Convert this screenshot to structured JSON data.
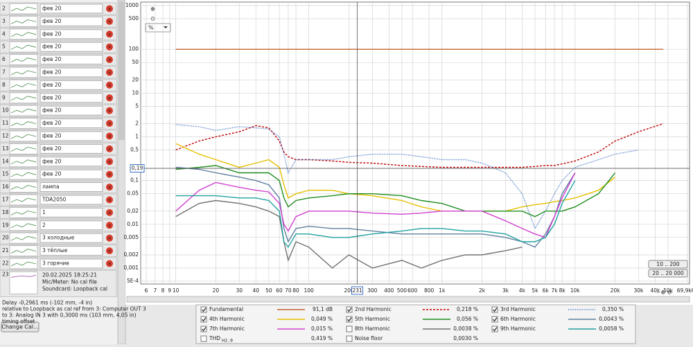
{
  "measurements": [
    {
      "number": 2,
      "name": "фев 20"
    },
    {
      "number": 3,
      "name": "фев 20"
    },
    {
      "number": 4,
      "name": "фев 20"
    },
    {
      "number": 5,
      "name": "фев 20"
    },
    {
      "number": 6,
      "name": "фев 20"
    },
    {
      "number": 7,
      "name": "фев 20"
    },
    {
      "number": 8,
      "name": "фев 20"
    },
    {
      "number": 9,
      "name": "фев 20"
    },
    {
      "number": 10,
      "name": "фев 20"
    },
    {
      "number": 11,
      "name": "фев 20"
    },
    {
      "number": 12,
      "name": "фев 20"
    },
    {
      "number": 13,
      "name": "фев 20"
    },
    {
      "number": 14,
      "name": "фев 20"
    },
    {
      "number": 15,
      "name": "фев 20"
    },
    {
      "number": 16,
      "name": "лампа"
    },
    {
      "number": 17,
      "name": "TDA2050"
    },
    {
      "number": 18,
      "name": "1"
    },
    {
      "number": 19,
      "name": "2"
    },
    {
      "number": 20,
      "name": "3 холодные"
    },
    {
      "number": 21,
      "name": "3 тёплые"
    },
    {
      "number": 22,
      "name": "3 горячие"
    }
  ],
  "selected": {
    "number": 23,
    "date": "20.02.2025 18:25:21",
    "mic": "Mic/Meter: No cal file",
    "soundcard": "Soundcard: Loopback cal"
  },
  "delay_note": [
    "Delay -0,2961 ms (-102 mm, -4 in)",
    "relative to Loopback as cal ref from 3: Computer OUT 3",
    "to 3: Analog IN 3 with 0,3000 ms (103 mm, 4,05 in)",
    "timing offset"
  ],
  "change_cal_button": "Change Cal...",
  "controls": {
    "zoom_in": "⊕",
    "zoom_out": "⊖",
    "unit": "%",
    "range_buttons": [
      "10 .. 200",
      "20 .. 20 000"
    ]
  },
  "chart_data": {
    "type": "line",
    "xscale": "log",
    "yscale": "log",
    "grid": true,
    "xlim": [
      6,
      69900
    ],
    "ylim": [
      0.0005,
      1000
    ],
    "xticks": [
      6,
      7,
      8,
      9,
      10,
      20,
      30,
      40,
      50,
      60,
      70,
      80,
      100,
      200,
      300,
      400,
      500,
      600,
      800,
      {
        "value": 1000,
        "label": "1k"
      },
      {
        "value": 2000,
        "label": "2k"
      },
      {
        "value": 3000,
        "label": "3k"
      },
      {
        "value": 4000,
        "label": "4k"
      },
      {
        "value": 5000,
        "label": "5k"
      },
      {
        "value": 6000,
        "label": "6k"
      },
      {
        "value": 7000,
        "label": "7k"
      },
      {
        "value": 8000,
        "label": "8k"
      },
      {
        "value": 10000,
        "label": "10k"
      },
      {
        "value": 20000,
        "label": "20k"
      },
      {
        "value": 30000,
        "label": "30k"
      },
      {
        "value": 40000,
        "label": "40k"
      },
      {
        "value": 50000,
        "label": "50k"
      },
      {
        "value": 69900,
        "label": "69,9kHz"
      }
    ],
    "yticks": [
      1000,
      500,
      100,
      50,
      20,
      10,
      5,
      2,
      1,
      {
        "value": 0.5,
        "label": "0,5"
      },
      {
        "value": 0.1,
        "label": "0,1"
      },
      {
        "value": 0.05,
        "label": "0,05"
      },
      {
        "value": 0.02,
        "label": "0,02"
      },
      {
        "value": 0.01,
        "label": "0,01"
      },
      {
        "value": 0.005,
        "label": "0,005"
      },
      {
        "value": 0.002,
        "label": "0,002"
      },
      {
        "value": 0.001,
        "label": "0,001"
      },
      {
        "value": 0.0005,
        "label": "5E-4"
      }
    ],
    "cursor": {
      "x": {
        "value": 231,
        "label": "231"
      },
      "y": {
        "value": 0.19,
        "label": "0,19"
      }
    },
    "x": [
      10,
      15,
      20,
      30,
      40,
      50,
      60,
      65,
      70,
      80,
      100,
      150,
      200,
      300,
      500,
      700,
      1000,
      1500,
      2000,
      3000,
      4000,
      5000,
      6000,
      7000,
      8000,
      10000,
      15000,
      20000,
      30000,
      46000
    ],
    "series": [
      {
        "name": "Fundamental",
        "color": "#c0622a",
        "dash": "solid",
        "checked": true,
        "reading": "91,1 dB",
        "values": [
          100,
          100,
          100,
          100,
          100,
          100,
          100,
          100,
          100,
          100,
          100,
          100,
          100,
          100,
          100,
          100,
          100,
          100,
          100,
          100,
          100,
          100,
          100,
          100,
          100,
          100,
          100,
          100,
          100,
          100
        ]
      },
      {
        "name": "2nd Harmonic",
        "color": "#c00000",
        "dash": "dashed",
        "checked": true,
        "reading": "0,218 %",
        "values": [
          0.5,
          0.8,
          1.0,
          1.3,
          1.8,
          1.6,
          0.8,
          0.45,
          0.35,
          0.3,
          0.3,
          0.28,
          0.26,
          0.25,
          0.22,
          0.21,
          0.2,
          0.2,
          0.2,
          0.2,
          0.2,
          0.21,
          0.22,
          0.22,
          0.24,
          0.28,
          0.45,
          0.8,
          1.3,
          2
        ]
      },
      {
        "name": "3rd Harmonic",
        "color": "#3b6fc4",
        "dash": "dotted",
        "checked": true,
        "reading": "0,350 %",
        "values": [
          1.9,
          1.7,
          1.4,
          1.7,
          1.6,
          1.5,
          1.0,
          0.4,
          0.15,
          0.3,
          0.3,
          0.3,
          0.35,
          0.4,
          0.4,
          0.35,
          0.3,
          0.3,
          0.25,
          0.15,
          0.05,
          0.008,
          0.02,
          0.05,
          0.1,
          0.2,
          0.3,
          0.4,
          0.5,
          null
        ]
      },
      {
        "name": "4th Harmonic",
        "color": "#e6c000",
        "dash": "solid",
        "checked": true,
        "reading": "0,049 %",
        "values": [
          0.7,
          0.4,
          0.3,
          0.2,
          0.25,
          0.3,
          0.2,
          0.08,
          0.04,
          0.05,
          0.06,
          0.06,
          0.05,
          0.045,
          0.035,
          0.025,
          0.02,
          0.02,
          0.02,
          0.02,
          0.025,
          0.028,
          0.03,
          0.033,
          0.035,
          0.04,
          0.06,
          0.12,
          null,
          null
        ]
      },
      {
        "name": "5th Harmonic",
        "color": "#1e8c1e",
        "dash": "solid",
        "checked": true,
        "reading": "0,056 %",
        "values": [
          0.18,
          0.2,
          0.22,
          0.15,
          0.15,
          0.15,
          0.1,
          0.04,
          0.025,
          0.035,
          0.04,
          0.045,
          0.05,
          0.05,
          0.045,
          0.035,
          0.03,
          0.02,
          0.02,
          0.02,
          0.02,
          0.015,
          0.02,
          0.02,
          0.02,
          0.025,
          0.05,
          0.15,
          null,
          null
        ]
      },
      {
        "name": "6th Harmonic",
        "color": "#5f7f9f",
        "dash": "solid",
        "checked": true,
        "reading": "0,0043 %",
        "values": [
          0.2,
          0.18,
          0.15,
          0.12,
          0.1,
          0.08,
          0.04,
          0.008,
          0.004,
          0.008,
          0.009,
          0.008,
          0.008,
          0.007,
          0.006,
          0.006,
          0.006,
          0.006,
          0.006,
          0.005,
          0.004,
          0.003,
          0.006,
          0.015,
          0.05,
          0.15,
          null,
          null,
          null,
          null
        ]
      },
      {
        "name": "7th Harmonic",
        "color": "#d040d0",
        "dash": "solid",
        "checked": true,
        "reading": "0,015 %",
        "values": [
          0.02,
          0.06,
          0.09,
          0.07,
          0.06,
          0.055,
          0.03,
          0.01,
          0.007,
          0.015,
          0.02,
          0.02,
          0.02,
          0.018,
          0.017,
          0.018,
          0.02,
          0.02,
          0.02,
          0.012,
          0.008,
          0.006,
          0.005,
          0.015,
          0.04,
          0.15,
          null,
          null,
          null,
          null
        ]
      },
      {
        "name": "8th Harmonic",
        "color": "#707070",
        "dash": "solid",
        "checked": false,
        "reading": "0,0038 %",
        "values": [
          0.015,
          0.03,
          0.035,
          0.03,
          0.025,
          0.02,
          0.015,
          0.004,
          0.0015,
          0.004,
          0.003,
          0.001,
          0.002,
          0.001,
          0.0015,
          0.001,
          0.0015,
          0.002,
          0.002,
          0.0025,
          0.003,
          null,
          null,
          null,
          null,
          null,
          null,
          null,
          null,
          null
        ]
      },
      {
        "name": "9th Harmonic",
        "color": "#20a0a0",
        "dash": "solid",
        "checked": true,
        "reading": "0,0058 %",
        "values": [
          0.045,
          0.045,
          0.045,
          0.04,
          0.04,
          0.035,
          0.02,
          0.004,
          0.003,
          0.006,
          0.006,
          0.005,
          0.005,
          0.006,
          0.007,
          0.008,
          0.008,
          0.007,
          0.007,
          0.006,
          0.004,
          0.004,
          0.005,
          0.01,
          0.03,
          0.1,
          null,
          null,
          null,
          null
        ]
      }
    ],
    "thd": {
      "name": "THD",
      "subscript": "H2..9",
      "checked": false,
      "reading": "0,419 %"
    },
    "noise_floor": {
      "name": "Noise floor",
      "checked": false,
      "reading": "0,0030 %"
    }
  }
}
